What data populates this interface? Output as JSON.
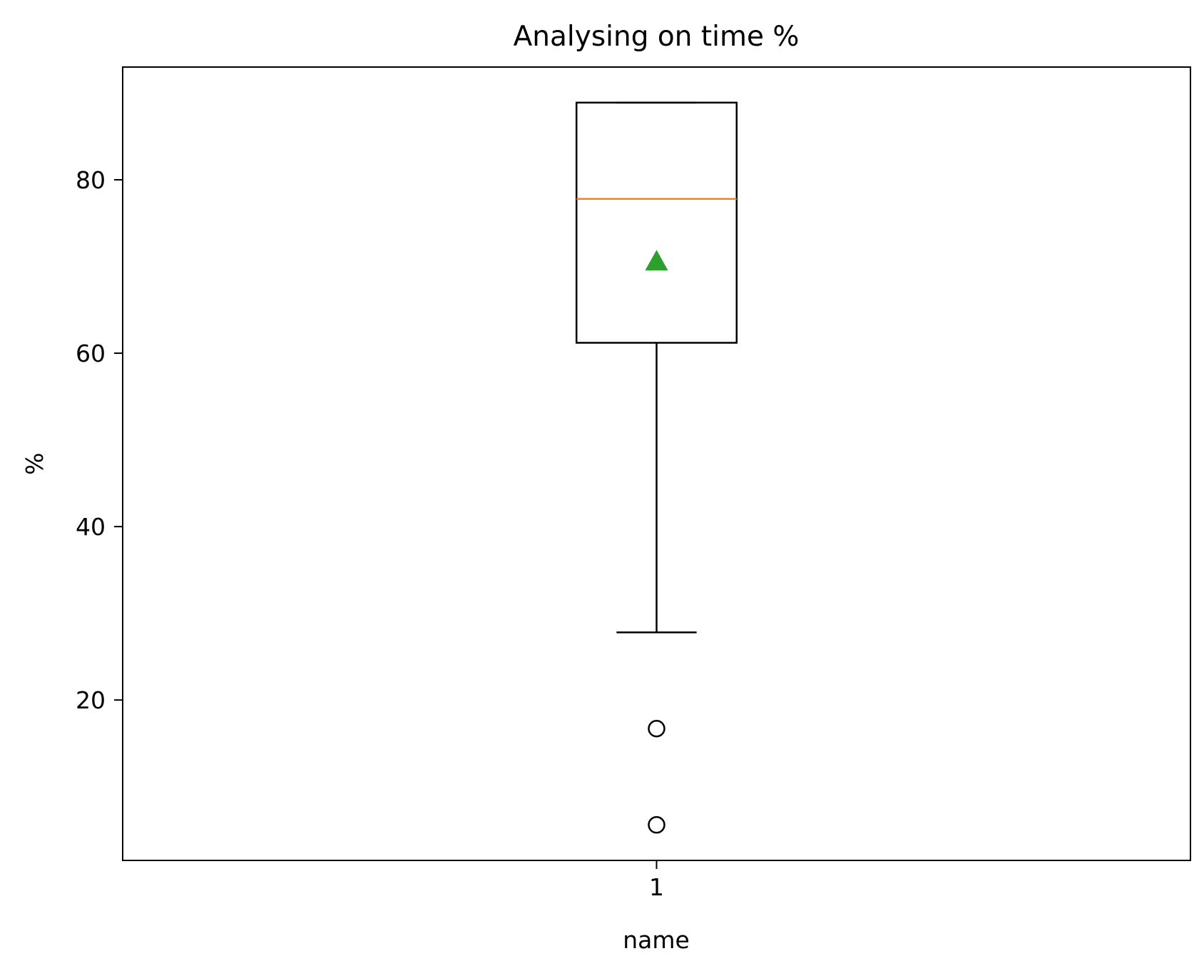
{
  "chart_data": {
    "type": "box",
    "title": "Analysing on time %",
    "xlabel": "name",
    "ylabel": "%",
    "categories": [
      "1"
    ],
    "yticks": [
      20,
      40,
      60,
      80
    ],
    "ylim": [
      1.5,
      93
    ],
    "xlim": [
      0.5,
      1.5
    ],
    "grid": false,
    "boxes": [
      {
        "category": "1",
        "whisker_low": 27.8,
        "q1": 61.2,
        "median": 77.8,
        "q3": 88.9,
        "whisker_high": 88.9,
        "mean": 70.6,
        "outliers": [
          16.7,
          5.6
        ]
      }
    ],
    "colors": {
      "box": "#000000",
      "median": "#ff7f0e",
      "mean": "#2ca02c",
      "outlier": "#000000"
    }
  }
}
